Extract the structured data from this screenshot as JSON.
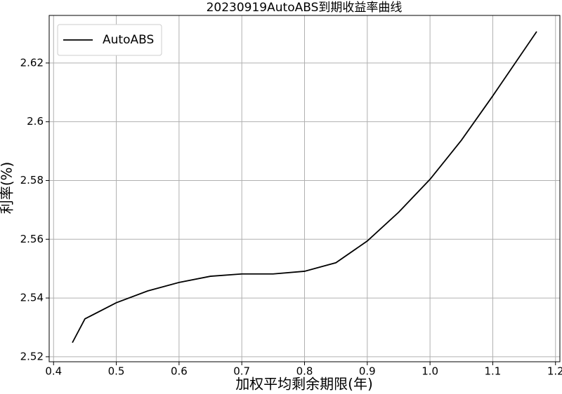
{
  "chart_data": {
    "type": "line",
    "title": "20230919AutoABS到期收益率曲线",
    "x_label": "加权平均剩余期限(年)",
    "y_label": "利率(%)",
    "x": [
      0.43,
      0.45,
      0.5,
      0.55,
      0.6,
      0.65,
      0.7,
      0.75,
      0.8,
      0.85,
      0.9,
      0.95,
      1.0,
      1.05,
      1.1,
      1.17
    ],
    "series": [
      {
        "name": "AutoABS",
        "color": "#000000",
        "values": [
          2.5248,
          2.5329,
          2.5384,
          2.5424,
          2.5453,
          2.5474,
          2.5482,
          2.5482,
          2.5491,
          2.552,
          2.5594,
          2.5692,
          2.5804,
          2.5937,
          2.6088,
          2.6307
        ]
      }
    ],
    "xlim": [
      0.393,
      1.207
    ],
    "xticks": [
      0.4,
      0.5,
      0.6,
      0.7,
      0.8,
      0.9,
      {
        "value": 1,
        "label": "1.0"
      },
      1.1,
      1.2
    ],
    "ylim": [
      2.5183,
      2.6362
    ],
    "yticks": [
      2.52,
      2.54,
      2.56,
      2.58,
      2.6,
      2.62
    ],
    "grid": true,
    "legend": "upper-left"
  }
}
